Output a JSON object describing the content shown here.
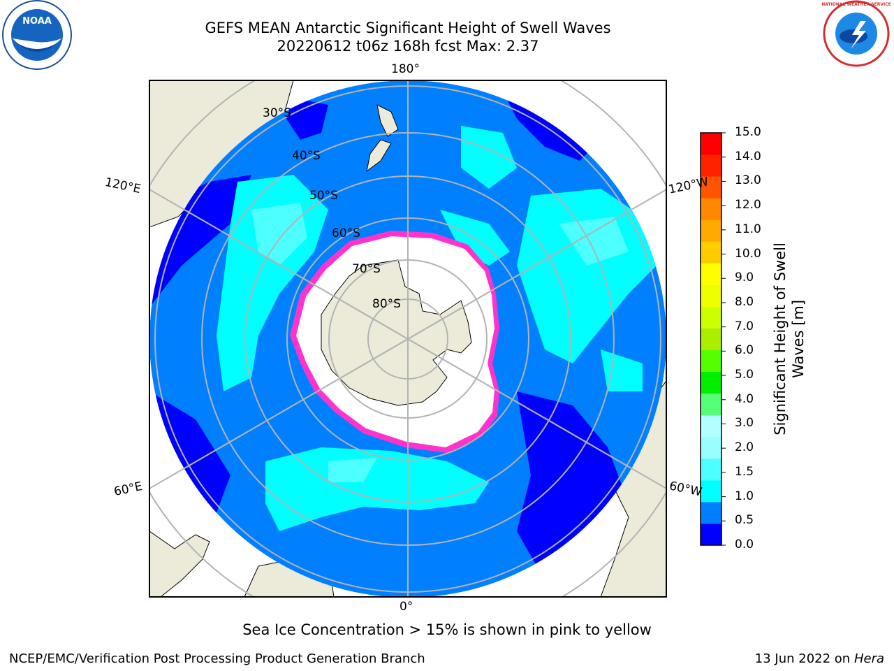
{
  "header": {
    "title": "GEFS MEAN Antarctic Significant Height of Swell Waves",
    "subtitle": "20220612 t06z 168h fcst   Max: 2.37"
  },
  "logos": {
    "left": "NOAA",
    "right": "NATIONAL WEATHER SERVICE"
  },
  "map": {
    "projection": "south-polar-stereographic",
    "longitude_labels": {
      "top": "180°",
      "bottom": "0°",
      "upper_left": "120°E",
      "upper_right": "120°W",
      "lower_left": "60°E",
      "lower_right": "60°W"
    },
    "latitude_labels": [
      "30°S",
      "40°S",
      "50°S",
      "60°S",
      "70°S",
      "80°S"
    ],
    "colors": {
      "land": "#ecebd9",
      "ocean_base": "#0080ff",
      "calm": "#0000ff",
      "swell_mid": "#00ffff",
      "swell_high": "#4dffff",
      "ice": "#ffffff",
      "ice_edge": "#ff33cc",
      "grid": "#b3b3b3"
    }
  },
  "colorbar": {
    "title_line1": "Significant Height of Swell",
    "title_line2": "Waves [m]",
    "ticks": [
      "15.0",
      "14.0",
      "13.0",
      "12.0",
      "11.0",
      "10.0",
      "9.0",
      "8.0",
      "7.0",
      "6.0",
      "5.0",
      "4.0",
      "3.0",
      "2.0",
      "1.5",
      "1.0",
      "0.5",
      "0.0"
    ],
    "colors_bottom_to_top": [
      "#0000ff",
      "#0080ff",
      "#00ffff",
      "#4dffff",
      "#99ffff",
      "#b3ffff",
      "#55ff77",
      "#00ee00",
      "#55ff00",
      "#aaee00",
      "#ccff00",
      "#eeff00",
      "#ffff00",
      "#ffcc00",
      "#ffaa00",
      "#ff8800",
      "#ff5500",
      "#ff2200",
      "#ff0000"
    ]
  },
  "caption": "Sea Ice Concentration > 15% is shown in pink to yellow",
  "footer": {
    "left": "NCEP/EMC/Verification Post Processing Product Generation Branch",
    "right_date": "13 Jun 2022 on",
    "right_host": "Hera"
  }
}
